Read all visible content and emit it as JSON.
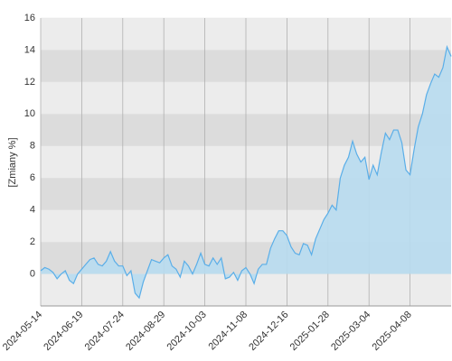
{
  "chart_data": {
    "type": "area",
    "y_label": "[Zmiany %]",
    "categories": [
      "2024-05-14",
      null,
      null,
      null,
      null,
      null,
      null,
      null,
      null,
      null,
      "2024-06-19",
      null,
      null,
      null,
      null,
      null,
      null,
      null,
      null,
      null,
      "2024-07-24",
      null,
      null,
      null,
      null,
      null,
      null,
      null,
      null,
      null,
      "2024-08-29",
      null,
      null,
      null,
      null,
      null,
      null,
      null,
      null,
      null,
      "2024-10-03",
      null,
      null,
      null,
      null,
      null,
      null,
      null,
      null,
      null,
      "2024-11-08",
      null,
      null,
      null,
      null,
      null,
      null,
      null,
      null,
      null,
      "2024-12-16",
      null,
      null,
      null,
      null,
      null,
      null,
      null,
      null,
      null,
      "2025-01-28",
      null,
      null,
      null,
      null,
      null,
      null,
      null,
      null,
      null,
      "2025-03-04",
      null,
      null,
      null,
      null,
      null,
      null,
      null,
      null,
      null,
      "2025-04-08",
      null,
      null,
      null,
      null,
      null,
      null,
      null,
      null,
      null,
      null
    ],
    "values": [
      0.2,
      0.4,
      0.3,
      0.1,
      -0.3,
      0.0,
      0.2,
      -0.4,
      -0.6,
      0.0,
      0.3,
      0.6,
      0.9,
      1.0,
      0.6,
      0.5,
      0.8,
      1.4,
      0.8,
      0.5,
      0.5,
      -0.1,
      0.2,
      -1.2,
      -1.5,
      -0.5,
      0.2,
      0.9,
      0.8,
      0.7,
      1.0,
      1.2,
      0.5,
      0.3,
      -0.2,
      0.8,
      0.5,
      0.0,
      0.6,
      1.3,
      0.6,
      0.5,
      1.0,
      0.6,
      1.0,
      -0.3,
      -0.2,
      0.1,
      -0.4,
      0.2,
      0.4,
      0.0,
      -0.6,
      0.3,
      0.6,
      0.6,
      1.6,
      2.2,
      2.7,
      2.7,
      2.4,
      1.7,
      1.3,
      1.2,
      1.9,
      1.8,
      1.2,
      2.2,
      2.8,
      3.4,
      3.8,
      4.3,
      4.0,
      6.0,
      6.8,
      7.3,
      8.3,
      7.5,
      7.0,
      7.3,
      5.9,
      6.8,
      6.2,
      7.6,
      8.8,
      8.4,
      9.0,
      9.0,
      8.2,
      6.5,
      6.2,
      7.8,
      9.2,
      10.0,
      11.2,
      11.9,
      12.5,
      12.3,
      12.9,
      14.2,
      13.6
    ],
    "color": "#5aaee8",
    "fill": "#b8dcef",
    "ylim": [
      -2,
      16
    ],
    "yticks": [
      0,
      2,
      4,
      6,
      8,
      10,
      12,
      14,
      16
    ],
    "grid": true
  }
}
